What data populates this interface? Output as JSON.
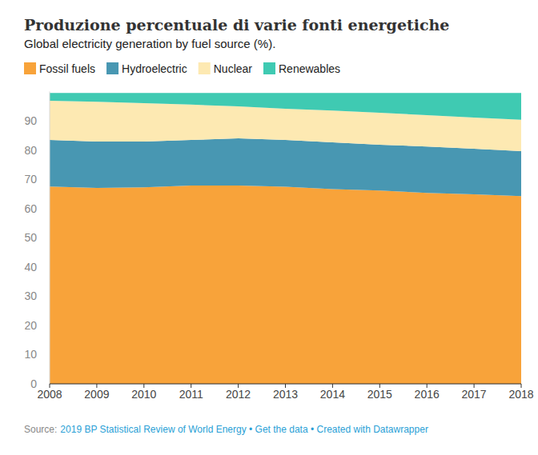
{
  "chart_data": {
    "type": "area",
    "title": "Produzione percentuale di varie fonti energetiche",
    "subtitle": "Global electricity generation by fuel source (%).",
    "source": "Source:",
    "source_links": "2019 BP Statistical Review of World Energy • Get the data • Created with Datawrapper",
    "stacked": true,
    "grid": true,
    "legend": "top-left",
    "x": [
      2008,
      2009,
      2010,
      2011,
      2012,
      2013,
      2014,
      2015,
      2016,
      2017,
      2018
    ],
    "xlim": [
      2008,
      2018
    ],
    "xticks": [
      2008,
      2009,
      2010,
      2011,
      2012,
      2013,
      2014,
      2015,
      2016,
      2017,
      2018
    ],
    "ylim": [
      0,
      100
    ],
    "yticks": [
      0,
      10,
      20,
      30,
      40,
      50,
      60,
      70,
      80,
      90
    ],
    "series": [
      {
        "name": "Fossil fuels",
        "color": "#f8a33a",
        "values": [
          67.5,
          67.0,
          67.2,
          67.8,
          67.8,
          67.4,
          66.6,
          66.1,
          65.3,
          64.8,
          64.2
        ]
      },
      {
        "name": "Hydroelectric",
        "color": "#4897b2",
        "values": [
          15.9,
          15.9,
          15.7,
          15.6,
          16.2,
          16.0,
          16.0,
          15.7,
          15.9,
          15.6,
          15.4
        ]
      },
      {
        "name": "Nuclear",
        "color": "#fde9b2",
        "values": [
          13.4,
          13.6,
          13.1,
          12.1,
          10.9,
          10.7,
          10.9,
          10.9,
          10.7,
          10.7,
          10.7
        ]
      },
      {
        "name": "Renewables",
        "color": "#3fcab2",
        "values": [
          2.7,
          3.0,
          3.5,
          4.0,
          4.6,
          5.4,
          6.0,
          6.8,
          7.6,
          8.4,
          9.2
        ]
      }
    ]
  }
}
